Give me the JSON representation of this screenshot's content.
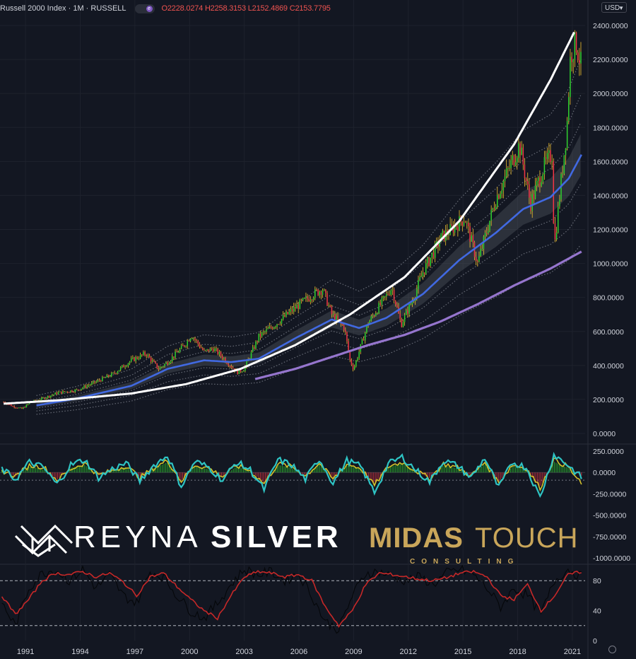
{
  "legend": {
    "title": "Russell 2000 Index · 1M · RUSSELL",
    "badge_icon": "e",
    "ohlc": "O2228.0274 H2258.3153 L2152.4869 C2153.7795"
  },
  "currency": {
    "label": "USD",
    "icon": "chevron-down-icon"
  },
  "watermark": {
    "brand1": "REYNA",
    "brand2": "SILVER",
    "brand3": "MIDAS",
    "brand4": "TOUCH",
    "brand5": "CONSULTING",
    "logo_icon": "crown-logo-icon",
    "colors": {
      "white": "#ffffff",
      "gold": "#c9a65a"
    }
  },
  "chart_data": [
    {
      "type": "candlestick",
      "title": "",
      "x_range": [
        1989.8,
        2021.9
      ],
      "ylim": [
        0,
        2450
      ],
      "y_ticks": [
        "2400.0000",
        "2200.0000",
        "2000.0000",
        "1800.0000",
        "1600.0000",
        "1400.0000",
        "1200.0000",
        "1000.0000",
        "800.0000",
        "600.0000",
        "400.0000",
        "200.0000",
        "0.0000"
      ],
      "x_ticks": [
        "1991",
        "1994",
        "1997",
        "2000",
        "2003",
        "2006",
        "2009",
        "2012",
        "2015",
        "2018",
        "2021"
      ],
      "colors": {
        "up": "#2fd12f",
        "down": "#f23645",
        "wick": "#f2c12e",
        "ma_blue": "#4169e1",
        "ma_purple": "#9575cd",
        "curve": "#ffffff",
        "band": "#8a8e99"
      },
      "close_path": [
        [
          1990.0,
          185
        ],
        [
          1990.5,
          160
        ],
        [
          1991.0,
          145
        ],
        [
          1991.5,
          185
        ],
        [
          1992.0,
          200
        ],
        [
          1993.0,
          240
        ],
        [
          1994.0,
          255
        ],
        [
          1995.0,
          300
        ],
        [
          1996.0,
          350
        ],
        [
          1997.0,
          430
        ],
        [
          1997.8,
          470
        ],
        [
          1998.5,
          380
        ],
        [
          1999.0,
          420
        ],
        [
          2000.0,
          530
        ],
        [
          2000.3,
          580
        ],
        [
          2001.0,
          480
        ],
        [
          2001.5,
          500
        ],
        [
          2002.0,
          450
        ],
        [
          2002.8,
          360
        ],
        [
          2003.2,
          380
        ],
        [
          2004.0,
          570
        ],
        [
          2005.0,
          650
        ],
        [
          2006.0,
          740
        ],
        [
          2007.0,
          820
        ],
        [
          2007.5,
          850
        ],
        [
          2008.0,
          700
        ],
        [
          2008.7,
          620
        ],
        [
          2009.0,
          430
        ],
        [
          2009.2,
          380
        ],
        [
          2010.0,
          650
        ],
        [
          2011.3,
          860
        ],
        [
          2011.8,
          640
        ],
        [
          2012.5,
          800
        ],
        [
          2013.0,
          950
        ],
        [
          2014.0,
          1150
        ],
        [
          2015.3,
          1270
        ],
        [
          2016.0,
          1000
        ],
        [
          2017.0,
          1380
        ],
        [
          2018.3,
          1700
        ],
        [
          2018.9,
          1350
        ],
        [
          2019.6,
          1560
        ],
        [
          2020.1,
          1650
        ],
        [
          2020.2,
          1080
        ],
        [
          2020.5,
          1400
        ],
        [
          2020.9,
          1800
        ],
        [
          2021.1,
          2230
        ],
        [
          2021.4,
          2300
        ],
        [
          2021.7,
          2154
        ]
      ],
      "series": [
        {
          "name": "",
          "style": "white-curve",
          "points": [
            [
              1990.0,
              175
            ],
            [
              1993.0,
              195
            ],
            [
              1997.0,
              235
            ],
            [
              2000.0,
              290
            ],
            [
              2003.0,
              380
            ],
            [
              2006.0,
              520
            ],
            [
              2009.0,
              700
            ],
            [
              2012.0,
              920
            ],
            [
              2015.0,
              1250
            ],
            [
              2018.0,
              1700
            ],
            [
              2020.0,
              2080
            ],
            [
              2021.3,
              2360
            ]
          ]
        },
        {
          "name": "",
          "style": "blue-ma",
          "points": [
            [
              1991.8,
              165
            ],
            [
              1994.0,
              205
            ],
            [
              1997.0,
              280
            ],
            [
              1999.0,
              380
            ],
            [
              2001.0,
              430
            ],
            [
              2002.5,
              420
            ],
            [
              2004.0,
              440
            ],
            [
              2006.0,
              560
            ],
            [
              2008.0,
              670
            ],
            [
              2009.5,
              620
            ],
            [
              2011.0,
              680
            ],
            [
              2013.0,
              820
            ],
            [
              2015.0,
              1020
            ],
            [
              2017.0,
              1180
            ],
            [
              2018.5,
              1320
            ],
            [
              2020.0,
              1390
            ],
            [
              2021.0,
              1500
            ],
            [
              2021.7,
              1640
            ]
          ]
        },
        {
          "name": "",
          "style": "purple-ma",
          "points": [
            [
              2003.8,
              320
            ],
            [
              2006.0,
              380
            ],
            [
              2008.0,
              450
            ],
            [
              2010.0,
              520
            ],
            [
              2012.0,
              580
            ],
            [
              2014.0,
              660
            ],
            [
              2016.0,
              760
            ],
            [
              2018.0,
              870
            ],
            [
              2020.0,
              970
            ],
            [
              2021.7,
              1070
            ]
          ]
        }
      ]
    },
    {
      "type": "line",
      "title": "",
      "ylim": [
        -1050,
        300
      ],
      "y_ticks": [
        "250.0000",
        "0.0000",
        "-250.0000",
        "-500.0000",
        "-750.0000",
        "-1000.0000"
      ],
      "colors": {
        "fast": "#2ec4c4",
        "slow": "#d4c22a"
      },
      "series": [
        {
          "name": "",
          "values": [
            40,
            -80,
            120,
            60,
            -140,
            90,
            150,
            -60,
            40,
            110,
            -100,
            80,
            200,
            -160,
            130,
            60,
            -90,
            120,
            30,
            -200,
            150,
            90,
            -80,
            160,
            -120,
            140,
            70,
            -230,
            100,
            180,
            30,
            -110,
            140,
            80,
            -60,
            170,
            -180,
            120,
            60,
            -290,
            210,
            90,
            -60
          ]
        },
        {
          "name": "",
          "values": [
            20,
            -40,
            80,
            70,
            -90,
            40,
            110,
            -30,
            20,
            80,
            -60,
            50,
            140,
            -100,
            90,
            50,
            -50,
            80,
            20,
            -130,
            100,
            70,
            -40,
            110,
            -80,
            100,
            50,
            -150,
            70,
            120,
            20,
            -70,
            100,
            60,
            -40,
            120,
            -120,
            90,
            50,
            -180,
            150,
            70,
            -140
          ]
        }
      ]
    },
    {
      "type": "line",
      "title": "",
      "ylim": [
        0,
        100
      ],
      "y_ticks": [
        "80",
        "40",
        "0"
      ],
      "reference_lines": [
        80,
        20
      ],
      "colors": {
        "main": "#c62828",
        "signal": "#000000"
      },
      "series": [
        {
          "name": "",
          "values": [
            60,
            35,
            55,
            80,
            90,
            88,
            92,
            85,
            90,
            78,
            60,
            85,
            90,
            72,
            55,
            40,
            30,
            60,
            85,
            92,
            90,
            85,
            88,
            80,
            45,
            20,
            40,
            75,
            90,
            88,
            85,
            82,
            80,
            84,
            90,
            92,
            85,
            60,
            55,
            75,
            40,
            60,
            88,
            92
          ]
        },
        {
          "name": "",
          "values": [
            50,
            20,
            70,
            90,
            95,
            80,
            95,
            70,
            88,
            60,
            50,
            92,
            85,
            60,
            40,
            30,
            50,
            75,
            95,
            88,
            92,
            80,
            90,
            60,
            25,
            15,
            60,
            90,
            92,
            85,
            80,
            85,
            75,
            90,
            95,
            88,
            70,
            45,
            70,
            60,
            35,
            80,
            95,
            85
          ]
        }
      ]
    }
  ]
}
